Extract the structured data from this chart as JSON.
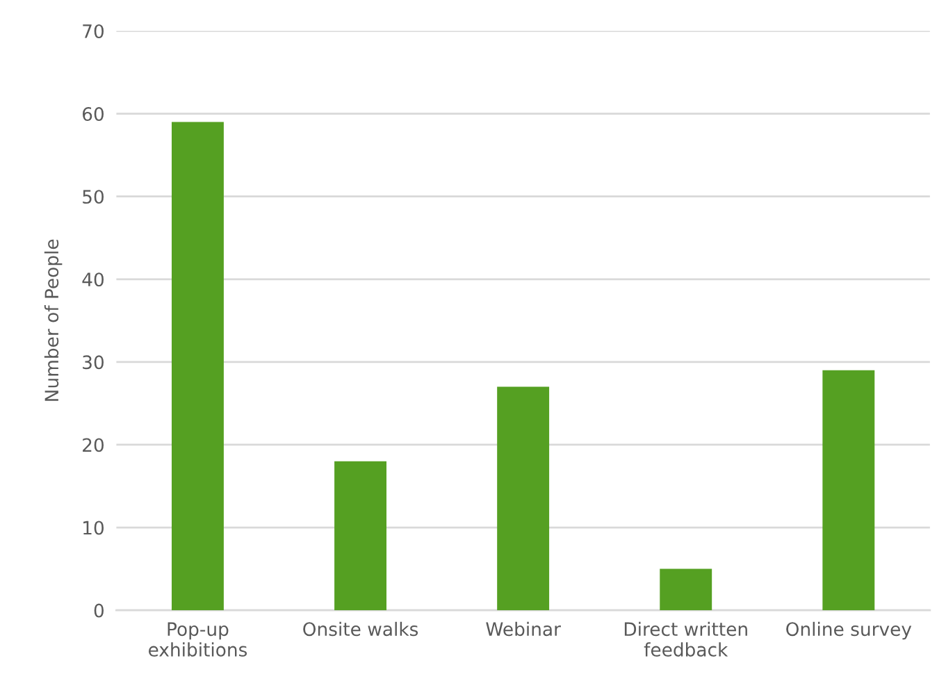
{
  "chart_data": {
    "type": "bar",
    "ylabel": "Number of People",
    "categories": [
      "Pop-up\nexhibitions",
      "Onsite walks",
      "Webinar",
      "Direct written\nfeedback",
      "Online survey"
    ],
    "values": [
      59,
      18,
      27,
      5,
      29
    ],
    "color": "#55a022",
    "ylim": [
      0,
      70
    ],
    "yticks": [
      0,
      10,
      20,
      30,
      40,
      50,
      60,
      70
    ],
    "grid": "y",
    "legend": false
  }
}
